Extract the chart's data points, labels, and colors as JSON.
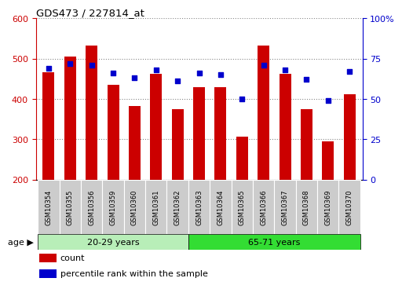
{
  "title": "GDS473 / 227814_at",
  "samples": [
    "GSM10354",
    "GSM10355",
    "GSM10356",
    "GSM10359",
    "GSM10360",
    "GSM10361",
    "GSM10362",
    "GSM10363",
    "GSM10364",
    "GSM10365",
    "GSM10366",
    "GSM10367",
    "GSM10368",
    "GSM10369",
    "GSM10370"
  ],
  "count_values": [
    467,
    505,
    533,
    435,
    383,
    462,
    374,
    430,
    430,
    307,
    533,
    462,
    374,
    295,
    412
  ],
  "percentile_values": [
    69,
    72,
    71,
    66,
    63,
    68,
    61,
    66,
    65,
    50,
    71,
    68,
    62,
    49,
    67
  ],
  "group1_label": "20-29 years",
  "group2_label": "65-71 years",
  "group1_count": 7,
  "group2_count": 8,
  "ylim_left": [
    200,
    600
  ],
  "ylim_right": [
    0,
    100
  ],
  "yticks_left": [
    200,
    300,
    400,
    500,
    600
  ],
  "yticks_right": [
    0,
    25,
    50,
    75,
    100
  ],
  "bar_color": "#cc0000",
  "dot_color": "#0000cc",
  "group1_bg": "#b8eeb8",
  "group2_bg": "#33dd33",
  "tick_bg": "#cccccc",
  "legend_count_label": "count",
  "legend_pct_label": "percentile rank within the sample",
  "age_label": "age",
  "background_color": "#ffffff",
  "border_color": "#000000"
}
